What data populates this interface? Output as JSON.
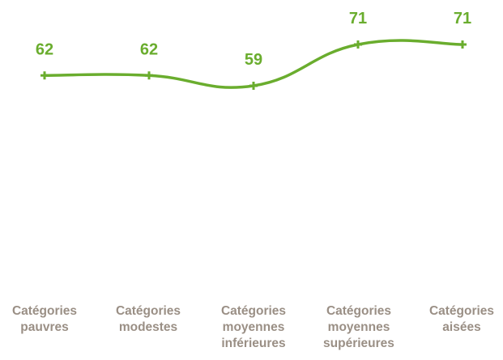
{
  "chart_data": {
    "type": "line",
    "title": "",
    "xlabel": "",
    "ylabel": "",
    "categories": [
      [
        "Catégories",
        "pauvres"
      ],
      [
        "Catégories",
        "modestes"
      ],
      [
        "Catégories",
        "moyennes",
        "inférieures"
      ],
      [
        "Catégories",
        "moyennes",
        "supérieures"
      ],
      [
        "Catégories",
        "aisées"
      ]
    ],
    "series": [
      {
        "values": [
          62,
          62,
          59,
          71,
          71
        ]
      }
    ],
    "line_style": "smooth",
    "marker": "plus",
    "data_labels": true,
    "axes_visible": false,
    "grid": false,
    "colors": {
      "line": "#6aad2e",
      "data_label": "#6aad2e",
      "category_label": "#9a8f85"
    }
  }
}
